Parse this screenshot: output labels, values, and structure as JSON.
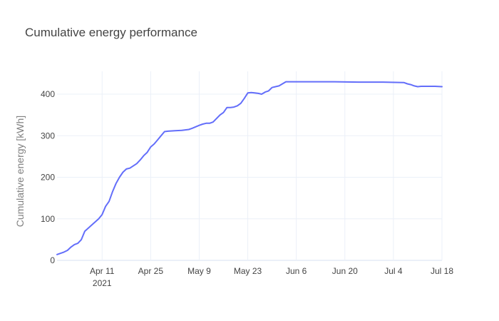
{
  "chart_data": {
    "type": "line",
    "title": "Cumulative energy performance",
    "xlabel": "",
    "ylabel": "Cumulative energy [kWh]",
    "x_ticks": [
      {
        "date": "2021-04-11",
        "label": "Apr 11",
        "sublabel": "2021"
      },
      {
        "date": "2021-04-25",
        "label": "Apr 25",
        "sublabel": ""
      },
      {
        "date": "2021-05-09",
        "label": "May 9",
        "sublabel": ""
      },
      {
        "date": "2021-05-23",
        "label": "May 23",
        "sublabel": ""
      },
      {
        "date": "2021-06-06",
        "label": "Jun 6",
        "sublabel": ""
      },
      {
        "date": "2021-06-20",
        "label": "Jun 20",
        "sublabel": ""
      },
      {
        "date": "2021-07-04",
        "label": "Jul 4",
        "sublabel": ""
      },
      {
        "date": "2021-07-18",
        "label": "Jul 18",
        "sublabel": ""
      }
    ],
    "y_ticks": [
      0,
      100,
      200,
      300,
      400
    ],
    "xlim": [
      "2021-03-29",
      "2021-07-18"
    ],
    "ylim": [
      0,
      455
    ],
    "grid": true,
    "line_color": "#636efa",
    "x": [
      "2021-03-29",
      "2021-03-31",
      "2021-04-01",
      "2021-04-02",
      "2021-04-03",
      "2021-04-04",
      "2021-04-05",
      "2021-04-06",
      "2021-04-08",
      "2021-04-10",
      "2021-04-11",
      "2021-04-12",
      "2021-04-13",
      "2021-04-14",
      "2021-04-15",
      "2021-04-16",
      "2021-04-17",
      "2021-04-18",
      "2021-04-19",
      "2021-04-21",
      "2021-04-22",
      "2021-04-23",
      "2021-04-24",
      "2021-04-25",
      "2021-04-26",
      "2021-04-27",
      "2021-04-28",
      "2021-04-29",
      "2021-04-30",
      "2021-05-02",
      "2021-05-04",
      "2021-05-05",
      "2021-05-06",
      "2021-05-07",
      "2021-05-09",
      "2021-05-10",
      "2021-05-11",
      "2021-05-12",
      "2021-05-13",
      "2021-05-15",
      "2021-05-16",
      "2021-05-17",
      "2021-05-18",
      "2021-05-19",
      "2021-05-20",
      "2021-05-21",
      "2021-05-22",
      "2021-05-23",
      "2021-05-24",
      "2021-05-25",
      "2021-05-26",
      "2021-05-27",
      "2021-05-28",
      "2021-05-29",
      "2021-05-30",
      "2021-05-31",
      "2021-06-01",
      "2021-06-03",
      "2021-06-10",
      "2021-06-17",
      "2021-06-24",
      "2021-07-01",
      "2021-07-07",
      "2021-07-08",
      "2021-07-09",
      "2021-07-10",
      "2021-07-11",
      "2021-07-12",
      "2021-07-14",
      "2021-07-16",
      "2021-07-18"
    ],
    "y": [
      14,
      20,
      24,
      32,
      38,
      41,
      50,
      70,
      85,
      100,
      110,
      130,
      142,
      165,
      185,
      200,
      212,
      220,
      222,
      233,
      242,
      252,
      260,
      273,
      280,
      290,
      300,
      310,
      311,
      312,
      313,
      314,
      315,
      318,
      325,
      328,
      330,
      330,
      333,
      350,
      356,
      368,
      368,
      369,
      372,
      378,
      390,
      403,
      404,
      403,
      402,
      400,
      405,
      408,
      416,
      418,
      420,
      430,
      430,
      430,
      429,
      429,
      428,
      425,
      423,
      420,
      418,
      419,
      419,
      419,
      418
    ]
  }
}
